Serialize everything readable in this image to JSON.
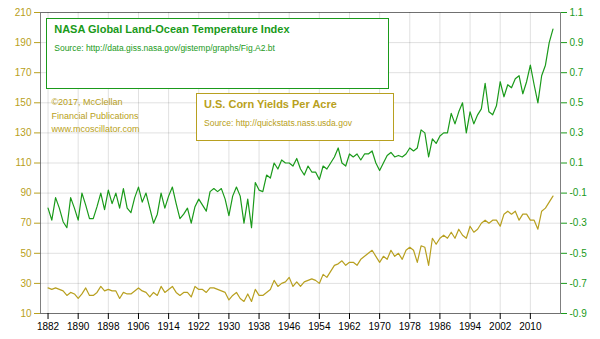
{
  "chart_data": {
    "type": "line",
    "x": [
      1882,
      1883,
      1884,
      1885,
      1886,
      1887,
      1888,
      1889,
      1890,
      1891,
      1892,
      1893,
      1894,
      1895,
      1896,
      1897,
      1898,
      1899,
      1900,
      1901,
      1902,
      1903,
      1904,
      1905,
      1906,
      1907,
      1908,
      1909,
      1910,
      1911,
      1912,
      1913,
      1914,
      1915,
      1916,
      1917,
      1918,
      1919,
      1920,
      1921,
      1922,
      1923,
      1924,
      1925,
      1926,
      1927,
      1928,
      1929,
      1930,
      1931,
      1932,
      1933,
      1934,
      1935,
      1936,
      1937,
      1938,
      1939,
      1940,
      1941,
      1942,
      1943,
      1944,
      1945,
      1946,
      1947,
      1948,
      1949,
      1950,
      1951,
      1952,
      1953,
      1954,
      1955,
      1956,
      1957,
      1958,
      1959,
      1960,
      1961,
      1962,
      1963,
      1964,
      1965,
      1966,
      1967,
      1968,
      1969,
      1970,
      1971,
      1972,
      1973,
      1974,
      1975,
      1976,
      1977,
      1978,
      1979,
      1980,
      1981,
      1982,
      1983,
      1984,
      1985,
      1986,
      1987,
      1988,
      1989,
      1990,
      1991,
      1992,
      1993,
      1994,
      1995,
      1996,
      1997,
      1998,
      1999,
      2000,
      2001,
      2002,
      2003,
      2004,
      2005,
      2006,
      2007,
      2008,
      2009,
      2010,
      2011,
      2012,
      2013,
      2014,
      2015,
      2016
    ],
    "series": [
      {
        "name": "U.S. Corn Yields Per Acre",
        "color": "#b8a020",
        "axis": "y",
        "values": [
          27,
          26,
          27,
          26,
          25,
          22,
          24,
          23,
          20,
          23,
          27,
          22,
          22,
          24,
          28,
          25,
          26,
          25,
          25,
          20,
          24,
          23,
          23,
          25,
          27,
          25,
          24,
          21,
          24,
          22,
          28,
          24,
          26,
          28,
          24,
          22,
          24,
          24,
          21,
          28,
          26,
          26,
          24,
          27,
          27,
          26,
          25,
          24,
          19,
          22,
          24,
          20,
          18,
          23,
          18,
          26,
          22,
          22,
          24,
          26,
          32,
          28,
          30,
          31,
          34,
          28,
          31,
          28,
          31,
          32,
          33,
          32,
          30,
          36,
          34,
          38,
          42,
          43,
          45,
          42,
          44,
          44,
          42,
          46,
          48,
          50,
          52,
          48,
          44,
          48,
          46,
          52,
          48,
          50,
          46,
          52,
          54,
          52,
          44,
          55,
          54,
          42,
          60,
          56,
          60,
          62,
          60,
          64,
          60,
          66,
          62,
          60,
          68,
          64,
          66,
          70,
          72,
          70,
          72,
          72,
          68,
          76,
          78,
          76,
          78,
          72,
          76,
          76,
          72,
          72,
          66,
          78,
          80,
          84,
          88
        ]
      },
      {
        "name": "NASA Global Land-Ocean Temperature Index",
        "color": "#1a9a1a",
        "axis": "y2",
        "values": [
          -0.2,
          -0.28,
          -0.13,
          -0.2,
          -0.29,
          -0.33,
          -0.13,
          -0.2,
          -0.28,
          -0.1,
          -0.18,
          -0.27,
          -0.27,
          -0.19,
          -0.1,
          -0.21,
          -0.08,
          -0.17,
          -0.1,
          -0.2,
          -0.07,
          -0.2,
          -0.23,
          -0.13,
          -0.06,
          -0.16,
          -0.1,
          -0.2,
          -0.3,
          -0.24,
          -0.1,
          -0.2,
          -0.12,
          -0.06,
          -0.17,
          -0.27,
          -0.24,
          -0.2,
          -0.3,
          -0.19,
          -0.14,
          -0.18,
          -0.22,
          -0.09,
          -0.07,
          -0.09,
          -0.07,
          -0.14,
          -0.25,
          -0.12,
          -0.06,
          -0.12,
          -0.3,
          -0.14,
          -0.33,
          -0.03,
          -0.08,
          -0.09,
          0.02,
          0.0,
          0.1,
          0.06,
          0.12,
          0.1,
          0.1,
          0.08,
          0.13,
          0.06,
          0.02,
          0.08,
          0.04,
          0.04,
          -0.01,
          0.08,
          0.06,
          0.1,
          0.14,
          0.2,
          0.1,
          0.08,
          0.16,
          0.14,
          0.16,
          0.12,
          0.16,
          0.16,
          0.18,
          0.1,
          0.05,
          0.1,
          0.15,
          0.17,
          0.14,
          0.15,
          0.14,
          0.16,
          0.2,
          0.18,
          0.2,
          0.32,
          0.3,
          0.14,
          0.26,
          0.23,
          0.28,
          0.3,
          0.3,
          0.43,
          0.36,
          0.44,
          0.5,
          0.3,
          0.44,
          0.36,
          0.42,
          0.46,
          0.63,
          0.44,
          0.42,
          0.48,
          0.64,
          0.54,
          0.62,
          0.6,
          0.66,
          0.68,
          0.56,
          0.64,
          0.75,
          0.62,
          0.5,
          0.68,
          0.75,
          0.9,
          0.99
        ]
      }
    ],
    "annotations": [
      "Source: http://data.giss.nasa.gov/gistemp/graphs/Fig.A2.bt",
      "Source: http://quickstats.nass.usda.gov",
      "©2017, McClellan\nFinancial Publications\nwww.mcoscillator.com"
    ],
    "xlim": [
      1880,
      2018
    ],
    "xticks": [
      1882,
      1890,
      1898,
      1906,
      1914,
      1922,
      1930,
      1938,
      1946,
      1954,
      1962,
      1970,
      1978,
      1986,
      1994,
      2002,
      2010
    ],
    "ylim": [
      10,
      210
    ],
    "yticks": [
      10,
      30,
      50,
      70,
      90,
      110,
      130,
      150,
      170,
      190,
      210
    ],
    "y2lim": [
      -0.9,
      1.1
    ],
    "y2ticks": [
      -0.9,
      -0.7,
      -0.5,
      -0.3,
      -0.1,
      0.1,
      0.3,
      0.5,
      0.7,
      0.9,
      1.1
    ],
    "grid": true
  }
}
